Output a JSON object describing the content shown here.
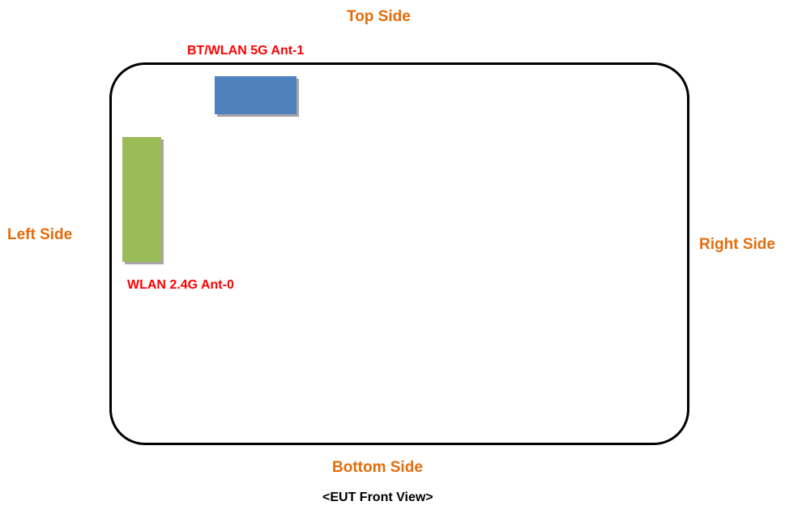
{
  "sides": {
    "top": "Top Side",
    "left": "Left Side",
    "right": "Right Side",
    "bottom": "Bottom Side"
  },
  "antennas": [
    {
      "label": "BT/WLAN 5G Ant-1",
      "color": "#4f81bd"
    },
    {
      "label": "WLAN 2.4G Ant-0",
      "color": "#9bbb59"
    }
  ],
  "caption": "<EUT Front View>",
  "colors": {
    "side_label": "#e46c0a",
    "antenna_label": "#ff0000",
    "outline": "#000000",
    "shadow": "#a6a6a6"
  }
}
